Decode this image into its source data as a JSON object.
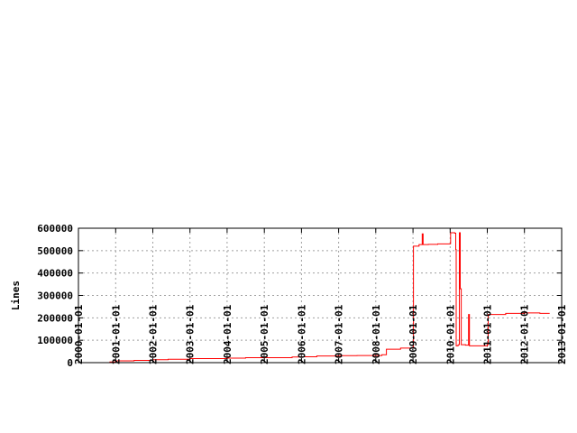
{
  "chart_data": {
    "type": "line",
    "title": "",
    "xlabel": "",
    "ylabel": "Lines",
    "ylim": [
      0,
      600000
    ],
    "xlim": [
      "2000-01-01",
      "2013-01-01"
    ],
    "grid": true,
    "line_color": "#ff0000",
    "y_ticks": [
      {
        "value": 0,
        "label": "0"
      },
      {
        "value": 100000,
        "label": "100000"
      },
      {
        "value": 200000,
        "label": "200000"
      },
      {
        "value": 300000,
        "label": "300000"
      },
      {
        "value": 400000,
        "label": "400000"
      },
      {
        "value": 500000,
        "label": "500000"
      },
      {
        "value": 600000,
        "label": "600000"
      }
    ],
    "x_ticks": [
      "2000-01-01",
      "2001-01-01",
      "2002-01-01",
      "2003-01-01",
      "2004-01-01",
      "2005-01-01",
      "2006-01-01",
      "2007-01-01",
      "2008-01-01",
      "2009-01-01",
      "2010-01-01",
      "2011-01-01",
      "2012-01-01",
      "2013-01-01"
    ],
    "series": [
      {
        "points": [
          [
            "2000-11-01",
            3000
          ],
          [
            "2001-01-01",
            8000
          ],
          [
            "2001-07-01",
            10000
          ],
          [
            "2002-01-01",
            13000
          ],
          [
            "2002-06-01",
            15000
          ],
          [
            "2003-01-01",
            18000
          ],
          [
            "2004-01-01",
            20000
          ],
          [
            "2004-07-01",
            22000
          ],
          [
            "2005-01-01",
            22000
          ],
          [
            "2005-10-01",
            25000
          ],
          [
            "2006-01-01",
            26000
          ],
          [
            "2006-06-01",
            30000
          ],
          [
            "2007-01-01",
            31000
          ],
          [
            "2007-07-01",
            32000
          ],
          [
            "2008-01-01",
            32000
          ],
          [
            "2008-03-01",
            35000
          ],
          [
            "2008-04-15",
            60000
          ],
          [
            "2008-09-01",
            65000
          ],
          [
            "2009-01-01",
            70000
          ],
          [
            "2009-01-05",
            520000
          ],
          [
            "2009-03-01",
            527000
          ],
          [
            "2009-04-01",
            575000
          ],
          [
            "2009-04-10",
            527000
          ],
          [
            "2009-06-01",
            528000
          ],
          [
            "2009-09-01",
            530000
          ],
          [
            "2010-01-01",
            531000
          ],
          [
            "2010-01-05",
            580000
          ],
          [
            "2010-02-15",
            578000
          ],
          [
            "2010-02-25",
            505000
          ],
          [
            "2010-03-01",
            75000
          ],
          [
            "2010-03-20",
            80000
          ],
          [
            "2010-04-01",
            580000
          ],
          [
            "2010-04-10",
            330000
          ],
          [
            "2010-04-20",
            80000
          ],
          [
            "2010-06-01",
            78000
          ],
          [
            "2010-07-01",
            215000
          ],
          [
            "2010-07-10",
            75000
          ],
          [
            "2010-10-01",
            75000
          ],
          [
            "2011-01-01",
            80000
          ],
          [
            "2011-01-10",
            215000
          ],
          [
            "2011-06-01",
            215000
          ],
          [
            "2011-07-01",
            220000
          ],
          [
            "2012-01-01",
            222000
          ],
          [
            "2012-04-01",
            222000
          ],
          [
            "2012-06-01",
            220000
          ],
          [
            "2012-09-01",
            222000
          ]
        ]
      }
    ]
  }
}
